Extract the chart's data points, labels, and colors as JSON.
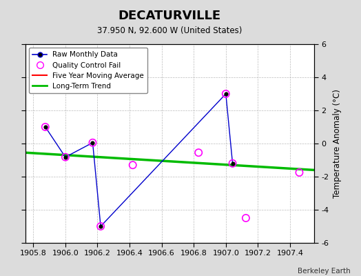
{
  "title": "DECATURVILLE",
  "subtitle": "37.950 N, 92.600 W (United States)",
  "credit": "Berkeley Earth",
  "ylabel": "Temperature Anomaly (°C)",
  "xlim": [
    1905.75,
    1907.55
  ],
  "ylim": [
    -6,
    6
  ],
  "xticks": [
    1905.8,
    1906.0,
    1906.2,
    1906.4,
    1906.6,
    1906.8,
    1907.0,
    1907.2,
    1907.4
  ],
  "yticks": [
    -6,
    -4,
    -2,
    0,
    2,
    4,
    6
  ],
  "background_color": "#dcdcdc",
  "plot_bg_color": "#ffffff",
  "raw_x": [
    1905.875,
    1906.0,
    1906.17,
    1906.22,
    1907.0,
    1907.042
  ],
  "raw_y": [
    1.0,
    -0.82,
    0.05,
    -5.0,
    3.0,
    -1.2
  ],
  "qc_fail_x": [
    1905.875,
    1906.0,
    1906.17,
    1906.22,
    1906.42,
    1906.83,
    1907.0,
    1907.042,
    1907.125,
    1907.458
  ],
  "qc_fail_y": [
    1.0,
    -0.82,
    0.05,
    -5.0,
    -1.3,
    -0.55,
    3.0,
    -1.2,
    -4.5,
    -1.75
  ],
  "trend_x": [
    1905.75,
    1907.55
  ],
  "trend_y": [
    -0.55,
    -1.6
  ],
  "line_color": "#0000cc",
  "marker_color": "#000000",
  "qc_color": "#ff00ff",
  "trend_color": "#00bb00",
  "mavg_color": "#ff0000"
}
